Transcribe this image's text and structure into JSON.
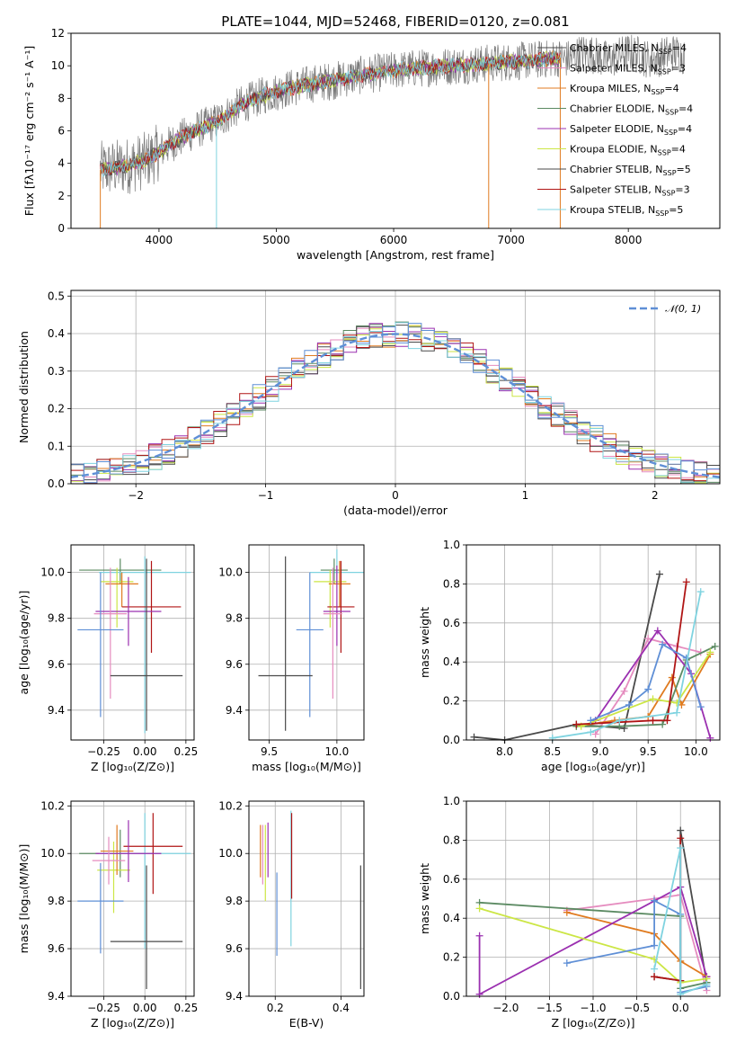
{
  "colors": {
    "Chabrier MILES": "#4a4a4a",
    "Salpeter MILES": "#e58cbf",
    "Kroupa MILES": "#e07b20",
    "Chabrier ELODIE": "#5b8a62",
    "Salpeter ELODIE": "#9b30b0",
    "Kroupa ELODIE": "#cce645",
    "Chabrier STELIB": "#4a4a4a",
    "Salpeter STELIB": "#b01515",
    "Kroupa STELIB": "#7fd3e0",
    "blue": "#5f8fd6",
    "gaussian": "#5f8fd6"
  },
  "chart_data": [
    {
      "id": "spectrum",
      "type": "line",
      "title": "PLATE=1044, MJD=52468, FIBERID=0120, z=0.081",
      "xlabel": "wavelength [Angstrom, rest frame]",
      "ylabel": "Flux [fλ10⁻¹⁷ erg cm⁻² s⁻¹ A⁻¹]",
      "xlim": [
        3250,
        8780
      ],
      "ylim": [
        0,
        12
      ],
      "xticks": [
        "4000",
        "5000",
        "6000",
        "7000",
        "8000"
      ],
      "xtick_values": [
        4000,
        5000,
        6000,
        7000,
        8000
      ],
      "yticks": [
        "0",
        "2",
        "4",
        "6",
        "8",
        "10",
        "12"
      ],
      "ytick_values": [
        0,
        2,
        4,
        6,
        8,
        10,
        12
      ],
      "grid": false,
      "legend_position": "upper-right",
      "observed_x_range": [
        3500,
        8480
      ],
      "model_x_range": [
        3500,
        7420
      ],
      "continuum_x": [
        3500,
        3700,
        3900,
        4100,
        4300,
        4500,
        4700,
        4900,
        5100,
        5300,
        5500,
        5700,
        5900,
        6100,
        6300,
        6500,
        6700,
        6900,
        7100,
        7300,
        7420
      ],
      "continuum_y": [
        3.6,
        3.8,
        4.2,
        5.2,
        6.0,
        6.6,
        7.6,
        8.2,
        8.6,
        8.9,
        9.1,
        9.4,
        9.6,
        9.8,
        9.9,
        10.0,
        10.1,
        10.2,
        10.3,
        10.4,
        10.5
      ],
      "legend": [
        {
          "label": "Chabrier MILES, N_SSP=4",
          "text": "Chabrier MILES, N",
          "sub": "SSP",
          "tail": "=4"
        },
        {
          "label": "Salpeter MILES, N_SSP=3",
          "text": "Salpeter MILES, N",
          "sub": "SSP",
          "tail": "=3"
        },
        {
          "label": "Kroupa MILES, N_SSP=4",
          "text": "Kroupa MILES, N",
          "sub": "SSP",
          "tail": "=4"
        },
        {
          "label": "Chabrier ELODIE, N_SSP=4",
          "text": "Chabrier ELODIE, N",
          "sub": "SSP",
          "tail": "=4"
        },
        {
          "label": "Salpeter ELODIE, N_SSP=4",
          "text": "Salpeter ELODIE, N",
          "sub": "SSP",
          "tail": "=4"
        },
        {
          "label": "Kroupa ELODIE, N_SSP=4",
          "text": "Kroupa ELODIE, N",
          "sub": "SSP",
          "tail": "=4"
        },
        {
          "label": "Chabrier STELIB, N_SSP=5",
          "text": "Chabrier STELIB, N",
          "sub": "SSP",
          "tail": "=5"
        },
        {
          "label": "Salpeter STELIB, N_SSP=3",
          "text": "Salpeter STELIB, N",
          "sub": "SSP",
          "tail": "=3"
        },
        {
          "label": "Kroupa STELIB, N_SSP=5",
          "text": "Kroupa STELIB, N",
          "sub": "SSP",
          "tail": "=5"
        }
      ],
      "legend_colors": [
        "#4a4a4a",
        "#e58cbf",
        "#e07b20",
        "#5b8a62",
        "#9b30b0",
        "#cce645",
        "#4a4a4a",
        "#b01515",
        "#7fd3e0"
      ]
    },
    {
      "id": "residuals",
      "type": "histogram",
      "xlabel": "(data-model)/error",
      "ylabel": "Normed distribution",
      "xlim": [
        -2.5,
        2.5
      ],
      "ylim": [
        0,
        0.515
      ],
      "xticks": [
        "−2",
        "−1",
        "0",
        "1",
        "2"
      ],
      "xtick_values": [
        -2,
        -1,
        0,
        1,
        2
      ],
      "yticks": [
        "0.0",
        "0.1",
        "0.2",
        "0.3",
        "0.4",
        "0.5"
      ],
      "ytick_values": [
        0,
        0.1,
        0.2,
        0.3,
        0.4,
        0.5
      ],
      "grid": true,
      "bin_edges_start": -2.5,
      "bin_width": 0.1,
      "n_bins": 50,
      "gaussian_label": "𝒩(0, 1)",
      "legend_position": "upper-right"
    },
    {
      "id": "age-vs-Z",
      "type": "errorbar",
      "xlabel": "Z [log₁₀(Z/Z⊙)]",
      "ylabel": "age  [log₁₀(age/yr)]",
      "xlim": [
        -0.45,
        0.3
      ],
      "ylim": [
        9.27,
        10.12
      ],
      "xticks": [
        "−0.25",
        "0.00",
        "0.25"
      ],
      "xtick_values": [
        -0.25,
        0,
        0.25
      ],
      "yticks": [
        "9.4",
        "9.6",
        "9.8",
        "10.0"
      ],
      "ytick_values": [
        9.4,
        9.6,
        9.8,
        10.0
      ],
      "grid": true,
      "points": [
        {
          "x": -0.15,
          "xerr": 0.25,
          "y": 10.01,
          "yerr_lo": 0.06,
          "yerr_hi": 0.05,
          "c": "#5b8a62"
        },
        {
          "x": 0.0,
          "xerr": 0.28,
          "y": 10.0,
          "yerr_lo": 0.7,
          "yerr_hi": 0.07,
          "c": "#7fd3e0"
        },
        {
          "x": -0.17,
          "xerr": 0.1,
          "y": 9.96,
          "yerr_lo": 0.2,
          "yerr_hi": 0.06,
          "c": "#cce645"
        },
        {
          "x": -0.14,
          "xerr": 0.1,
          "y": 9.95,
          "yerr_lo": 0.1,
          "yerr_hi": 0.05,
          "c": "#e07b20"
        },
        {
          "x": 0.04,
          "xerr": 0.18,
          "y": 9.85,
          "yerr_lo": 0.2,
          "yerr_hi": 0.2,
          "c": "#b01515"
        },
        {
          "x": -0.1,
          "xerr": 0.2,
          "y": 9.83,
          "yerr_lo": 0.15,
          "yerr_hi": 0.15,
          "c": "#9b30b0"
        },
        {
          "x": -0.21,
          "xerr": 0.1,
          "y": 9.82,
          "yerr_lo": 0.37,
          "yerr_hi": 0.2,
          "c": "#e58cbf"
        },
        {
          "x": -0.27,
          "xerr": 0.14,
          "y": 9.75,
          "yerr_lo": 0.38,
          "yerr_hi": 0.25,
          "c": "#5f8fd6"
        },
        {
          "x": 0.01,
          "xerr": 0.22,
          "y": 9.55,
          "yerr_lo": 0.24,
          "yerr_hi": 0.51,
          "c": "#4a4a4a"
        }
      ]
    },
    {
      "id": "age-vs-mass",
      "type": "errorbar",
      "xlabel": "mass [log₁₀(M/M⊙)]",
      "ylabel": "",
      "xlim": [
        9.35,
        10.2
      ],
      "ylim": [
        9.27,
        10.12
      ],
      "xticks": [
        "9.5",
        "10.0"
      ],
      "xtick_values": [
        9.5,
        10.0
      ],
      "yticks": [
        "9.4",
        "9.6",
        "9.8",
        "10.0"
      ],
      "ytick_values": [
        9.4,
        9.6,
        9.8,
        10.0
      ],
      "grid": true,
      "points": [
        {
          "x": 10.0,
          "xerr": 0.2,
          "y": 10.0,
          "yerr_lo": 0.05,
          "yerr_hi": 0.1,
          "c": "#7fd3e0"
        },
        {
          "x": 9.98,
          "xerr": 0.1,
          "y": 10.01,
          "yerr_lo": 0.06,
          "yerr_hi": 0.05,
          "c": "#5b8a62"
        },
        {
          "x": 9.95,
          "xerr": 0.12,
          "y": 9.96,
          "yerr_lo": 0.2,
          "yerr_hi": 0.05,
          "c": "#cce645"
        },
        {
          "x": 10.02,
          "xerr": 0.08,
          "y": 9.95,
          "yerr_lo": 0.1,
          "yerr_hi": 0.1,
          "c": "#e07b20"
        },
        {
          "x": 10.03,
          "xerr": 0.1,
          "y": 9.85,
          "yerr_lo": 0.2,
          "yerr_hi": 0.2,
          "c": "#b01515"
        },
        {
          "x": 10.0,
          "xerr": 0.1,
          "y": 9.83,
          "yerr_lo": 0.15,
          "yerr_hi": 0.2,
          "c": "#9b30b0"
        },
        {
          "x": 9.97,
          "xerr": 0.07,
          "y": 9.82,
          "yerr_lo": 0.37,
          "yerr_hi": 0.2,
          "c": "#e58cbf"
        },
        {
          "x": 9.8,
          "xerr": 0.1,
          "y": 9.75,
          "yerr_lo": 0.38,
          "yerr_hi": 0.25,
          "c": "#5f8fd6"
        },
        {
          "x": 9.62,
          "xerr": 0.2,
          "y": 9.55,
          "yerr_lo": 0.24,
          "yerr_hi": 0.52,
          "c": "#4a4a4a"
        }
      ]
    },
    {
      "id": "massweight-vs-age",
      "type": "line",
      "xlabel": "age  [log₁₀(age/yr)]",
      "ylabel": "mass weight",
      "xlim": [
        7.6,
        10.25
      ],
      "ylim": [
        0,
        1.0
      ],
      "xticks": [
        "8.0",
        "8.5",
        "9.0",
        "9.5",
        "10.0"
      ],
      "xtick_values": [
        8.0,
        8.5,
        9.0,
        9.5,
        10.0
      ],
      "yticks": [
        "0.0",
        "0.2",
        "0.4",
        "0.6",
        "0.8",
        "1.0"
      ],
      "ytick_values": [
        0,
        0.2,
        0.4,
        0.6,
        0.8,
        1.0
      ],
      "grid": true,
      "series": [
        {
          "c": "#4a4a4a",
          "x": [
            7.68,
            8.0,
            8.75,
            9.25,
            9.62
          ],
          "y": [
            0.015,
            0.0,
            0.08,
            0.06,
            0.85
          ]
        },
        {
          "c": "#e58cbf",
          "x": [
            8.95,
            9.25,
            9.5,
            9.8,
            10.05
          ],
          "y": [
            0.03,
            0.25,
            0.52,
            0.48,
            0.45
          ]
        },
        {
          "c": "#e07b20",
          "x": [
            8.75,
            9.15,
            9.5,
            9.75,
            9.85,
            10.15
          ],
          "y": [
            0.07,
            0.1,
            0.12,
            0.32,
            0.18,
            0.44
          ]
        },
        {
          "c": "#5b8a62",
          "x": [
            8.75,
            9.2,
            9.65,
            9.9,
            10.2
          ],
          "y": [
            0.07,
            0.07,
            0.08,
            0.41,
            0.48
          ]
        },
        {
          "c": "#9b30b0",
          "x": [
            8.95,
            9.6,
            9.95,
            10.15
          ],
          "y": [
            0.1,
            0.56,
            0.34,
            0.01
          ]
        },
        {
          "c": "#cce645",
          "x": [
            8.8,
            9.55,
            9.8,
            10.15
          ],
          "y": [
            0.07,
            0.21,
            0.19,
            0.45
          ]
        },
        {
          "c": "#b01515",
          "x": [
            8.75,
            9.55,
            9.7,
            9.9
          ],
          "y": [
            0.08,
            0.1,
            0.1,
            0.81
          ]
        },
        {
          "c": "#5f8fd6",
          "x": [
            8.9,
            9.3,
            9.5,
            9.65,
            9.9,
            10.05
          ],
          "y": [
            0.1,
            0.18,
            0.26,
            0.49,
            0.42,
            0.17
          ]
        },
        {
          "c": "#7fd3e0",
          "x": [
            8.5,
            8.9,
            9.2,
            9.8,
            10.05
          ],
          "y": [
            0.01,
            0.04,
            0.1,
            0.14,
            0.76
          ]
        }
      ]
    },
    {
      "id": "mass-vs-Z",
      "type": "errorbar",
      "xlabel": "Z [log₁₀(Z/Z⊙)]",
      "ylabel": "mass [log₁₀(M/M⊙)]",
      "xlim": [
        -0.45,
        0.3
      ],
      "ylim": [
        9.4,
        10.22
      ],
      "xticks": [
        "−0.25",
        "0.00",
        "0.25"
      ],
      "xtick_values": [
        -0.25,
        0,
        0.25
      ],
      "yticks": [
        "9.4",
        "9.6",
        "9.8",
        "10.0",
        "10.2"
      ],
      "ytick_values": [
        9.4,
        9.6,
        9.8,
        10.0,
        10.2
      ],
      "grid": true,
      "points": [
        {
          "x": -0.15,
          "xerr": 0.25,
          "y": 10.0,
          "yerr_lo": 0.1,
          "yerr_hi": 0.1,
          "c": "#5b8a62"
        },
        {
          "x": 0.0,
          "xerr": 0.28,
          "y": 10.0,
          "yerr_lo": 0.4,
          "yerr_hi": 0.17,
          "c": "#7fd3e0"
        },
        {
          "x": -0.19,
          "xerr": 0.1,
          "y": 9.93,
          "yerr_lo": 0.18,
          "yerr_hi": 0.12,
          "c": "#cce645"
        },
        {
          "x": -0.17,
          "xerr": 0.1,
          "y": 10.01,
          "yerr_lo": 0.1,
          "yerr_hi": 0.11,
          "c": "#e07b20"
        },
        {
          "x": 0.05,
          "xerr": 0.18,
          "y": 10.03,
          "yerr_lo": 0.2,
          "yerr_hi": 0.14,
          "c": "#b01515"
        },
        {
          "x": -0.1,
          "xerr": 0.2,
          "y": 10.0,
          "yerr_lo": 0.12,
          "yerr_hi": 0.14,
          "c": "#9b30b0"
        },
        {
          "x": -0.22,
          "xerr": 0.1,
          "y": 9.97,
          "yerr_lo": 0.1,
          "yerr_hi": 0.1,
          "c": "#e58cbf"
        },
        {
          "x": -0.27,
          "xerr": 0.14,
          "y": 9.8,
          "yerr_lo": 0.22,
          "yerr_hi": 0.16,
          "c": "#5f8fd6"
        },
        {
          "x": 0.01,
          "xerr": 0.22,
          "y": 9.63,
          "yerr_lo": 0.2,
          "yerr_hi": 0.32,
          "c": "#4a4a4a"
        }
      ]
    },
    {
      "id": "mass-vs-EBV",
      "type": "errorbar",
      "xlabel": "E(B-V)",
      "ylabel": "",
      "xlim": [
        0.12,
        0.47
      ],
      "ylim": [
        9.4,
        10.22
      ],
      "xticks": [
        "0.2",
        "0.4"
      ],
      "xtick_values": [
        0.2,
        0.4
      ],
      "yticks": [
        "9.4",
        "9.6",
        "9.8",
        "10.0",
        "10.2"
      ],
      "ytick_values": [
        9.4,
        9.6,
        9.8,
        10.0,
        10.2
      ],
      "grid": true,
      "points": [
        {
          "x": 0.155,
          "xerr": 0,
          "y": 10.01,
          "yerr_lo": 0.11,
          "yerr_hi": 0.11,
          "c": "#e07b20"
        },
        {
          "x": 0.17,
          "xerr": 0,
          "y": 10.0,
          "yerr_lo": 0.2,
          "yerr_hi": 0.12,
          "c": "#cce645"
        },
        {
          "x": 0.178,
          "xerr": 0,
          "y": 10.0,
          "yerr_lo": 0.1,
          "yerr_hi": 0.13,
          "c": "#9b30b0"
        },
        {
          "x": 0.162,
          "xerr": 0,
          "y": 9.97,
          "yerr_lo": 0.1,
          "yerr_hi": 0.15,
          "c": "#e58cbf"
        },
        {
          "x": 0.205,
          "xerr": 0,
          "y": 9.75,
          "yerr_lo": 0.18,
          "yerr_hi": 0.17,
          "c": "#5f8fd6"
        },
        {
          "x": 0.248,
          "xerr": 0,
          "y": 9.85,
          "yerr_lo": 0.24,
          "yerr_hi": 0.33,
          "c": "#7fd3e0"
        },
        {
          "x": 0.25,
          "xerr": 0,
          "y": 10.0,
          "yerr_lo": 0.19,
          "yerr_hi": 0.17,
          "c": "#b01515"
        },
        {
          "x": 0.46,
          "xerr": 0,
          "y": 9.68,
          "yerr_lo": 0.25,
          "yerr_hi": 0.27,
          "c": "#4a4a4a"
        }
      ]
    },
    {
      "id": "massweight-vs-Z",
      "type": "line",
      "xlabel": "Z [log₁₀(Z/Z⊙)]",
      "ylabel": "mass weight",
      "xlim": [
        -2.45,
        0.45
      ],
      "ylim": [
        0,
        1.0
      ],
      "xticks": [
        "−2.0",
        "−1.5",
        "−1.0",
        "−0.5",
        "0.0"
      ],
      "xtick_values": [
        -2.0,
        -1.5,
        -1.0,
        -0.5,
        0.0
      ],
      "yticks": [
        "0.0",
        "0.2",
        "0.4",
        "0.6",
        "0.8",
        "1.0"
      ],
      "ytick_values": [
        0,
        0.2,
        0.4,
        0.6,
        0.8,
        1.0
      ],
      "grid": true,
      "series": [
        {
          "c": "#4a4a4a",
          "x": [
            -0.3,
            0.0,
            0.0,
            0.3
          ],
          "y": [
            0.1,
            0.08,
            0.85,
            0.07
          ]
        },
        {
          "c": "#e58cbf",
          "x": [
            -1.3,
            -0.3,
            0.0,
            0.3
          ],
          "y": [
            0.44,
            0.5,
            0.52,
            0.03
          ]
        },
        {
          "c": "#e07b20",
          "x": [
            -1.3,
            -0.3,
            0.0,
            0.3
          ],
          "y": [
            0.43,
            0.32,
            0.18,
            0.1
          ]
        },
        {
          "c": "#5b8a62",
          "x": [
            -2.3,
            0.0,
            0.0,
            0.3
          ],
          "y": [
            0.48,
            0.41,
            0.04,
            0.07
          ]
        },
        {
          "c": "#9b30b0",
          "x": [
            -2.3,
            -2.3,
            0.0,
            0.3
          ],
          "y": [
            0.31,
            0.01,
            0.56,
            0.1
          ]
        },
        {
          "c": "#cce645",
          "x": [
            -2.3,
            -0.3,
            0.0,
            0.3
          ],
          "y": [
            0.45,
            0.19,
            0.07,
            0.09
          ]
        },
        {
          "c": "#b01515",
          "x": [
            -0.3,
            0.0,
            0.0
          ],
          "y": [
            0.1,
            0.08,
            0.81
          ]
        },
        {
          "c": "#5f8fd6",
          "x": [
            -1.3,
            -0.3,
            -0.3,
            0.0,
            0.0,
            0.3
          ],
          "y": [
            0.17,
            0.26,
            0.49,
            0.42,
            0.02,
            0.05
          ]
        },
        {
          "c": "#7fd3e0",
          "x": [
            -0.3,
            0.0,
            0.0,
            0.3
          ],
          "y": [
            0.14,
            0.76,
            0.01,
            0.06
          ]
        }
      ]
    }
  ]
}
